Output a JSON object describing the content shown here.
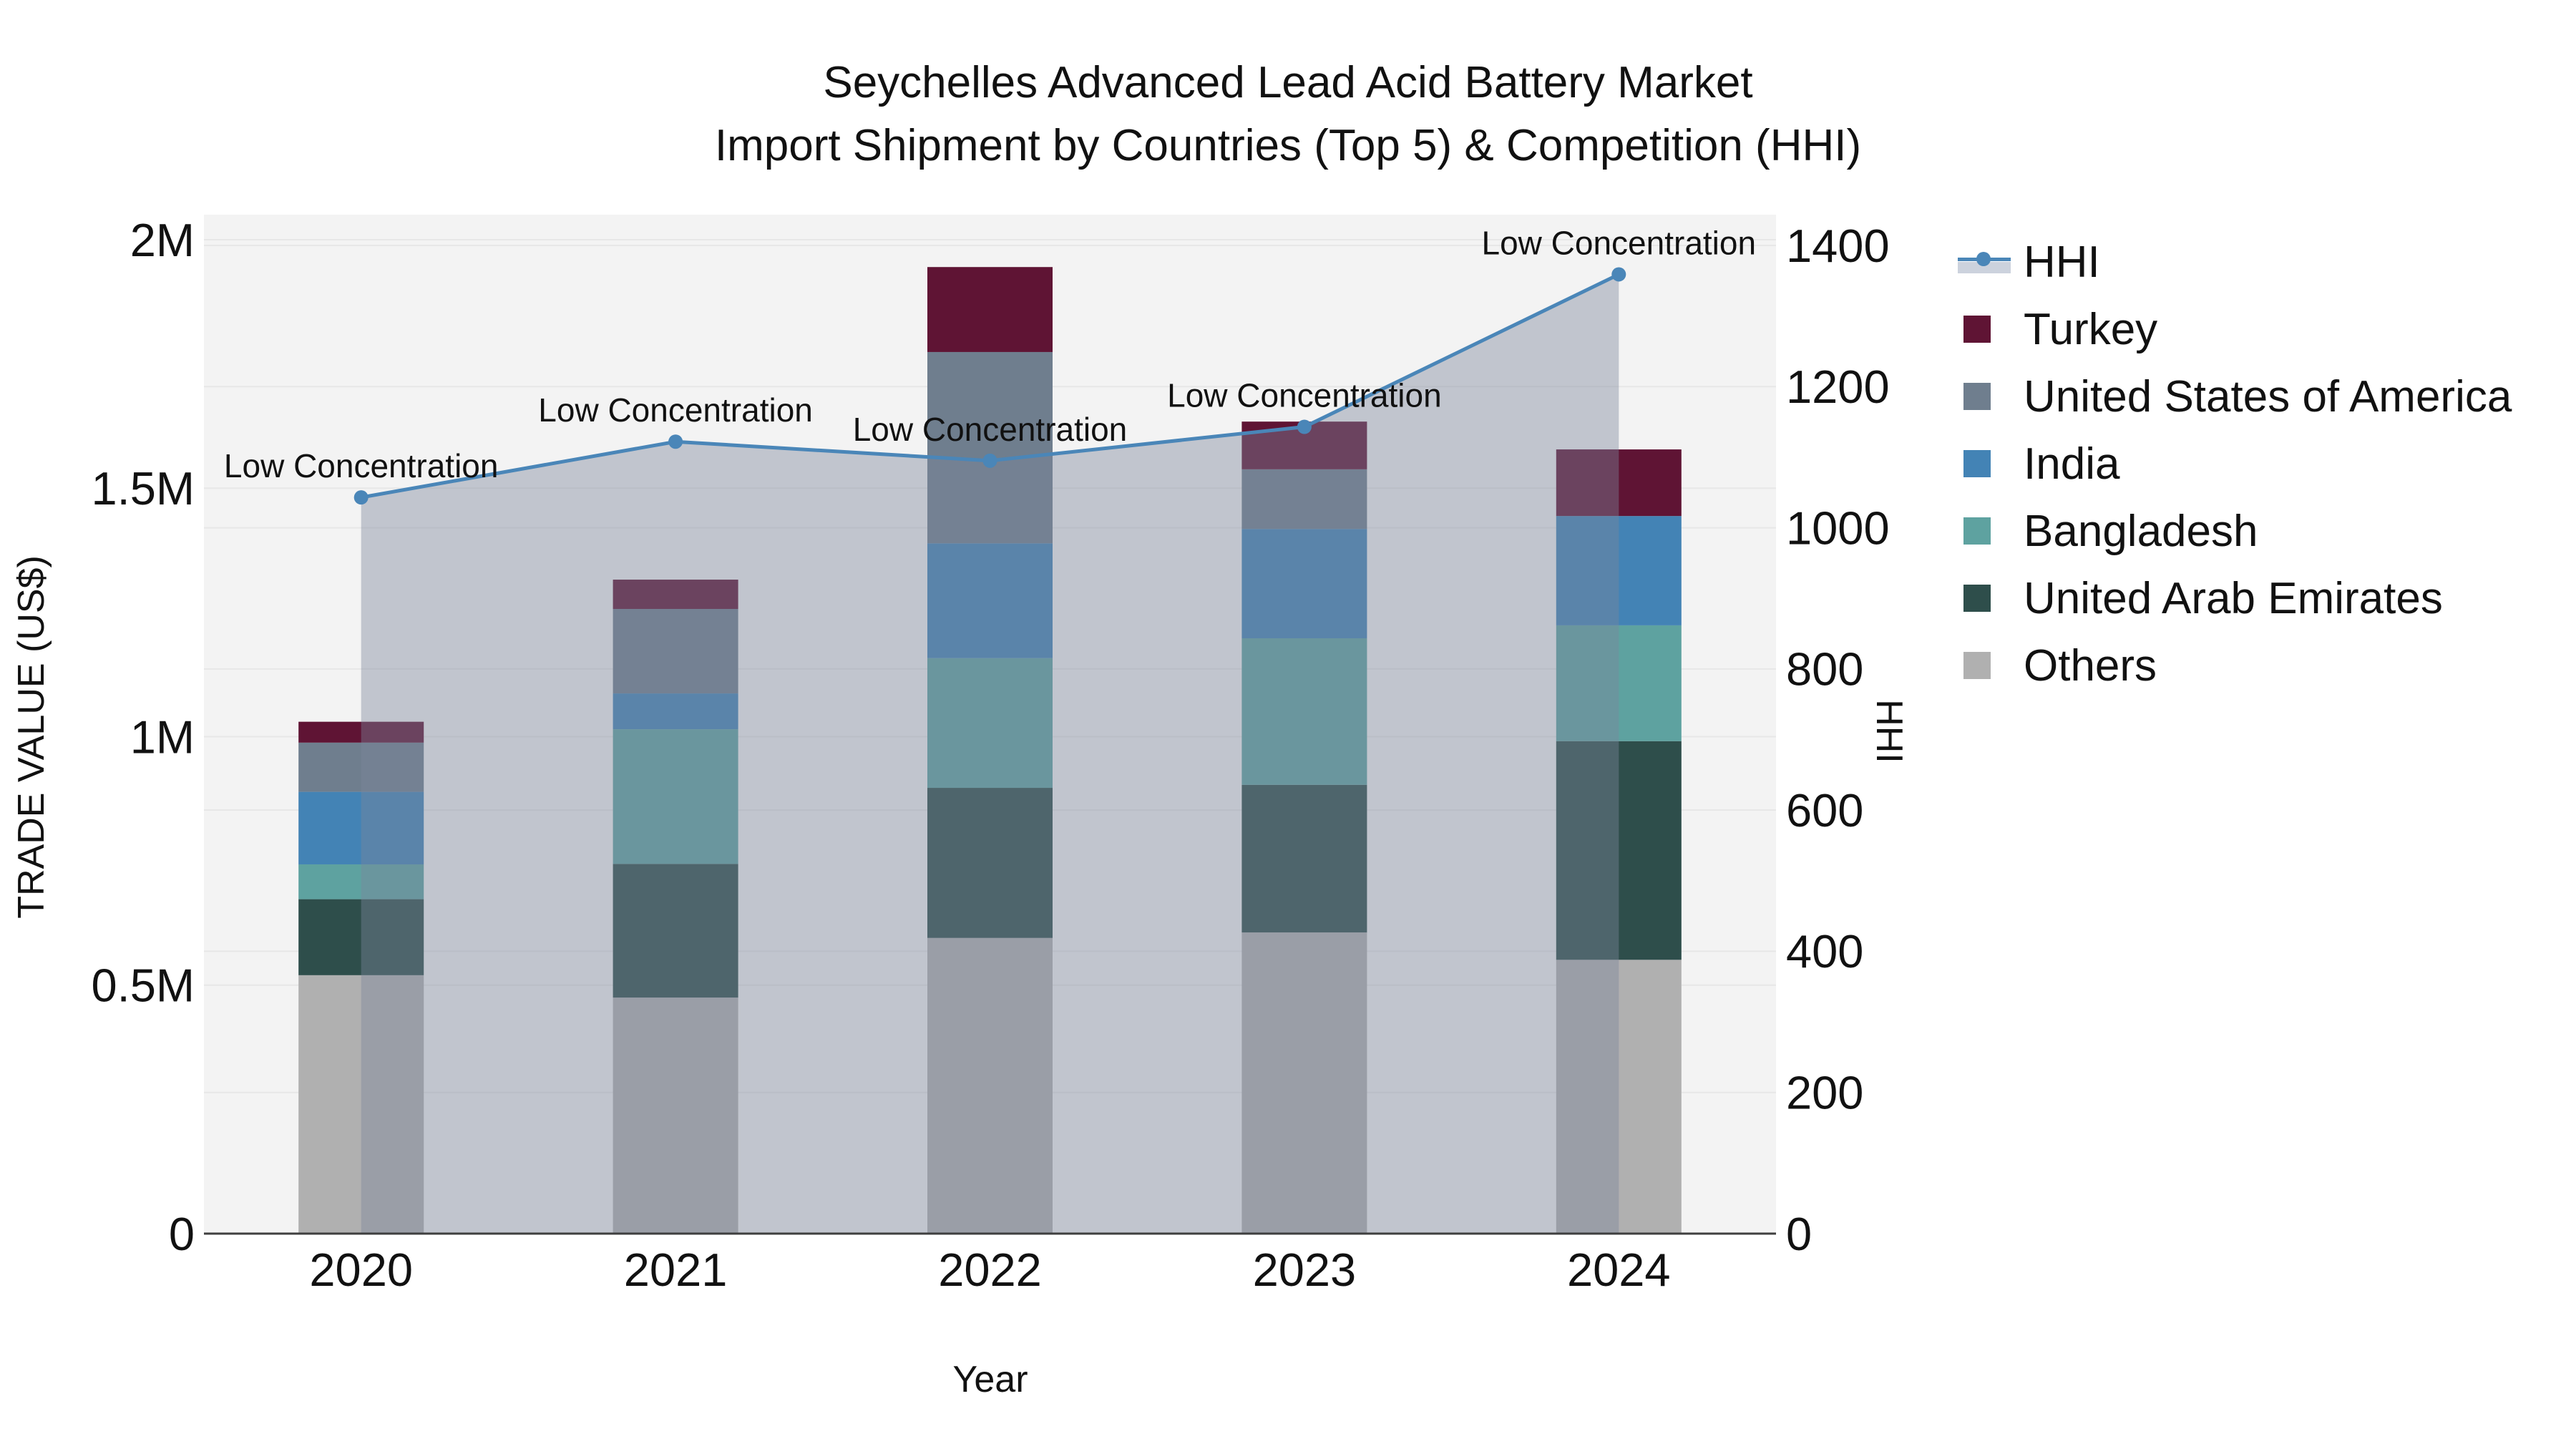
{
  "title": {
    "line1": "Seychelles Advanced Lead Acid Battery Market",
    "line2": "Import Shipment by Countries (Top 5) & Competition (HHI)"
  },
  "axes": {
    "left": {
      "title": "TRADE VALUE (US$)",
      "tick_labels": [
        "0",
        "0.5M",
        "1M",
        "1.5M",
        "2M"
      ],
      "tick_values": [
        0,
        500000,
        1000000,
        1500000,
        2000000
      ],
      "max": 2000000
    },
    "right": {
      "title": "HHI",
      "tick_labels": [
        "0",
        "200",
        "400",
        "600",
        "800",
        "1000",
        "1200",
        "1400"
      ],
      "tick_values": [
        0,
        200,
        400,
        600,
        800,
        1000,
        1200,
        1400
      ],
      "max": 1400
    },
    "x": {
      "title": "Year",
      "categories": [
        "2020",
        "2021",
        "2022",
        "2023",
        "2024"
      ]
    }
  },
  "chart_data": {
    "type": "bar",
    "subtype": "stacked-bars-with-line",
    "categories": [
      "2020",
      "2021",
      "2022",
      "2023",
      "2024"
    ],
    "series": [
      {
        "name": "Turkey",
        "color": "#5f1434",
        "values": [
          42000,
          59000,
          171000,
          96000,
          134000
        ]
      },
      {
        "name": "United States of America",
        "color": "#6f7e8e",
        "values": [
          99000,
          170000,
          385000,
          120000,
          0
        ]
      },
      {
        "name": "India",
        "color": "#4383b5",
        "values": [
          146000,
          72000,
          231000,
          220000,
          220000
        ]
      },
      {
        "name": "Bangladesh",
        "color": "#5ea2a0",
        "values": [
          70000,
          271000,
          261000,
          295000,
          233000
        ]
      },
      {
        "name": "United Arab Emirates",
        "color": "#2e4e4b",
        "values": [
          153000,
          269000,
          302000,
          297000,
          440000
        ]
      },
      {
        "name": "Others",
        "color": "#b0b0b0",
        "values": [
          520000,
          475000,
          595000,
          606000,
          551000
        ]
      }
    ],
    "line": {
      "name": "HHI",
      "color": "#4a86b8",
      "area_color": "rgba(125,133,155,0.42)",
      "values": [
        1043,
        1122,
        1095,
        1143,
        1359
      ]
    },
    "annotations": [
      "Low Concentration",
      "Low Concentration",
      "Low Concentration",
      "Low Concentration",
      "Low Concentration"
    ],
    "ylim_left": [
      0,
      2000000
    ],
    "ylim_right": [
      0,
      1400
    ],
    "grid": true,
    "legend_position": "right"
  },
  "legend": {
    "items": [
      {
        "label": "HHI",
        "type": "line",
        "color": "#4a86b8",
        "band_color": "#ccd2dd"
      },
      {
        "label": "Turkey",
        "type": "square",
        "color": "#5f1434"
      },
      {
        "label": "United States of America",
        "type": "square",
        "color": "#6f7e8e"
      },
      {
        "label": "India",
        "type": "square",
        "color": "#4383b5"
      },
      {
        "label": "Bangladesh",
        "type": "square",
        "color": "#5ea2a0"
      },
      {
        "label": "United Arab Emirates",
        "type": "square",
        "color": "#2e4e4b"
      },
      {
        "label": "Others",
        "type": "square",
        "color": "#b0b0b0"
      }
    ]
  },
  "colors": {
    "plot_background": "#f3f3f3",
    "gridline": "#e7e7e7",
    "axis_line": "#3f3f3f",
    "text": "#111111"
  }
}
